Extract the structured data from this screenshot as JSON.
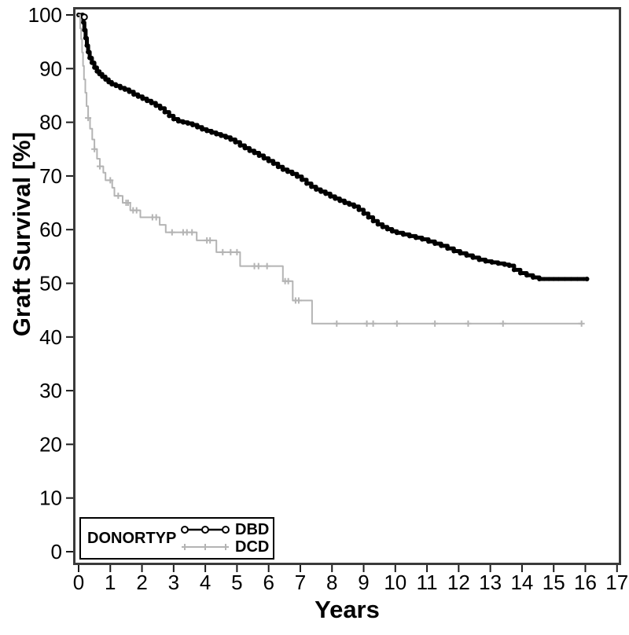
{
  "colors": {
    "dbd": "#000000",
    "dcd": "#b4b4b4",
    "frame": "#3a3a3a",
    "tick": "#1a1a1a",
    "text": "#000000",
    "background": "#ffffff"
  },
  "chart_data": {
    "type": "line",
    "subtype": "kaplan-meier-step",
    "title": "",
    "xlabel": "Years",
    "ylabel": "Graft Survival [%]",
    "xlim": [
      0,
      17
    ],
    "ylim": [
      0,
      100
    ],
    "x_ticks": [
      0,
      1,
      2,
      3,
      4,
      5,
      6,
      7,
      8,
      9,
      10,
      11,
      12,
      13,
      14,
      15,
      16,
      17
    ],
    "y_ticks": [
      0,
      10,
      20,
      30,
      40,
      50,
      60,
      70,
      80,
      90,
      100
    ],
    "grid": false,
    "step": "post",
    "legend": {
      "title": "DONORTYP",
      "position": "bottom-left",
      "entries": [
        {
          "label": "DBD",
          "color": "#000000",
          "marker": "circle"
        },
        {
          "label": "DCD",
          "color": "#b4b4b4",
          "marker": "plus"
        }
      ]
    },
    "series": [
      {
        "name": "DBD",
        "color": "#000000",
        "marker": "circle",
        "line_width": 5,
        "points": [
          [
            0,
            100
          ],
          [
            0.12,
            100
          ],
          [
            0.15,
            98.6
          ],
          [
            0.18,
            97.2
          ],
          [
            0.22,
            95.7
          ],
          [
            0.26,
            94.3
          ],
          [
            0.3,
            93.1
          ],
          [
            0.35,
            92.0
          ],
          [
            0.42,
            91.1
          ],
          [
            0.5,
            90.2
          ],
          [
            0.58,
            89.5
          ],
          [
            0.66,
            89.0
          ],
          [
            0.75,
            88.5
          ],
          [
            0.85,
            88.0
          ],
          [
            0.95,
            87.5
          ],
          [
            1.05,
            87.1
          ],
          [
            1.18,
            86.8
          ],
          [
            1.32,
            86.4
          ],
          [
            1.46,
            86.1
          ],
          [
            1.6,
            85.7
          ],
          [
            1.74,
            85.2
          ],
          [
            1.88,
            84.8
          ],
          [
            2.02,
            84.4
          ],
          [
            2.16,
            84.0
          ],
          [
            2.3,
            83.6
          ],
          [
            2.44,
            83.1
          ],
          [
            2.58,
            82.6
          ],
          [
            2.72,
            81.9
          ],
          [
            2.86,
            81.2
          ],
          [
            3.0,
            80.6
          ],
          [
            3.15,
            80.2
          ],
          [
            3.3,
            80.0
          ],
          [
            3.45,
            79.8
          ],
          [
            3.6,
            79.5
          ],
          [
            3.75,
            79.1
          ],
          [
            3.9,
            78.7
          ],
          [
            4.05,
            78.4
          ],
          [
            4.2,
            78.1
          ],
          [
            4.35,
            77.8
          ],
          [
            4.5,
            77.5
          ],
          [
            4.65,
            77.2
          ],
          [
            4.8,
            76.8
          ],
          [
            4.95,
            76.3
          ],
          [
            5.1,
            75.7
          ],
          [
            5.25,
            75.2
          ],
          [
            5.4,
            74.7
          ],
          [
            5.55,
            74.3
          ],
          [
            5.7,
            73.8
          ],
          [
            5.85,
            73.3
          ],
          [
            6.0,
            72.8
          ],
          [
            6.15,
            72.3
          ],
          [
            6.3,
            71.7
          ],
          [
            6.45,
            71.2
          ],
          [
            6.6,
            70.8
          ],
          [
            6.75,
            70.4
          ],
          [
            6.9,
            69.9
          ],
          [
            7.05,
            69.3
          ],
          [
            7.2,
            68.6
          ],
          [
            7.35,
            68.0
          ],
          [
            7.5,
            67.5
          ],
          [
            7.65,
            67.1
          ],
          [
            7.8,
            66.7
          ],
          [
            7.95,
            66.2
          ],
          [
            8.1,
            65.8
          ],
          [
            8.25,
            65.4
          ],
          [
            8.4,
            65.0
          ],
          [
            8.55,
            64.7
          ],
          [
            8.7,
            64.3
          ],
          [
            8.85,
            63.7
          ],
          [
            9.0,
            63.0
          ],
          [
            9.15,
            62.3
          ],
          [
            9.3,
            61.6
          ],
          [
            9.45,
            61.0
          ],
          [
            9.6,
            60.5
          ],
          [
            9.75,
            60.1
          ],
          [
            9.9,
            59.7
          ],
          [
            10.05,
            59.4
          ],
          [
            10.25,
            59.1
          ],
          [
            10.45,
            58.8
          ],
          [
            10.65,
            58.5
          ],
          [
            10.85,
            58.2
          ],
          [
            11.05,
            57.8
          ],
          [
            11.25,
            57.4
          ],
          [
            11.45,
            57.0
          ],
          [
            11.65,
            56.5
          ],
          [
            11.85,
            56.0
          ],
          [
            12.05,
            55.6
          ],
          [
            12.25,
            55.2
          ],
          [
            12.45,
            54.8
          ],
          [
            12.65,
            54.4
          ],
          [
            12.85,
            54.1
          ],
          [
            13.05,
            53.9
          ],
          [
            13.25,
            53.7
          ],
          [
            13.45,
            53.5
          ],
          [
            13.6,
            53.3
          ],
          [
            13.75,
            52.5
          ],
          [
            13.95,
            51.9
          ],
          [
            14.15,
            51.5
          ],
          [
            14.35,
            51.1
          ],
          [
            14.55,
            50.8
          ],
          [
            16.05,
            50.8
          ]
        ],
        "start_marker": [
          0.18,
          99.6
        ],
        "censor_marks": [
          [
            14.7,
            50.8
          ],
          [
            14.85,
            50.8
          ],
          [
            15.0,
            50.8
          ],
          [
            15.15,
            50.8
          ],
          [
            15.35,
            50.8
          ],
          [
            15.55,
            50.8
          ],
          [
            15.75,
            50.8
          ],
          [
            15.95,
            50.8
          ]
        ]
      },
      {
        "name": "DCD",
        "color": "#b4b4b4",
        "marker": "plus",
        "line_width": 2,
        "points": [
          [
            0,
            100
          ],
          [
            0.05,
            97.5
          ],
          [
            0.08,
            95.5
          ],
          [
            0.11,
            93.0
          ],
          [
            0.14,
            90.5
          ],
          [
            0.17,
            88.0
          ],
          [
            0.21,
            85.5
          ],
          [
            0.25,
            83.0
          ],
          [
            0.3,
            80.8
          ],
          [
            0.36,
            78.8
          ],
          [
            0.43,
            76.8
          ],
          [
            0.5,
            75.0
          ],
          [
            0.58,
            73.2
          ],
          [
            0.67,
            71.8
          ],
          [
            0.78,
            70.6
          ],
          [
            0.85,
            69.2
          ],
          [
            1.06,
            67.8
          ],
          [
            1.13,
            66.3
          ],
          [
            1.39,
            65.0
          ],
          [
            1.63,
            63.6
          ],
          [
            1.95,
            62.3
          ],
          [
            2.56,
            60.9
          ],
          [
            2.75,
            59.5
          ],
          [
            3.73,
            58.0
          ],
          [
            4.35,
            55.8
          ],
          [
            5.1,
            53.2
          ],
          [
            6.45,
            50.4
          ],
          [
            6.76,
            46.8
          ],
          [
            7.37,
            42.5
          ],
          [
            15.9,
            42.5
          ]
        ],
        "censor_marks": [
          [
            0.3,
            80.8
          ],
          [
            0.5,
            75.0
          ],
          [
            0.67,
            71.8
          ],
          [
            1.0,
            69.2
          ],
          [
            1.25,
            66.3
          ],
          [
            1.5,
            65.0
          ],
          [
            1.56,
            65.0
          ],
          [
            1.72,
            63.6
          ],
          [
            1.83,
            63.6
          ],
          [
            2.33,
            62.3
          ],
          [
            2.45,
            62.3
          ],
          [
            2.95,
            59.5
          ],
          [
            3.3,
            59.5
          ],
          [
            3.42,
            59.5
          ],
          [
            3.58,
            59.5
          ],
          [
            4.05,
            58.0
          ],
          [
            4.15,
            58.0
          ],
          [
            4.55,
            55.8
          ],
          [
            4.8,
            55.8
          ],
          [
            5.0,
            55.8
          ],
          [
            5.55,
            53.2
          ],
          [
            5.68,
            53.2
          ],
          [
            5.95,
            53.2
          ],
          [
            6.52,
            50.4
          ],
          [
            6.62,
            50.4
          ],
          [
            6.85,
            46.8
          ],
          [
            6.95,
            46.8
          ],
          [
            8.15,
            42.5
          ],
          [
            9.1,
            42.5
          ],
          [
            9.3,
            42.5
          ],
          [
            10.05,
            42.5
          ],
          [
            11.25,
            42.5
          ],
          [
            12.3,
            42.5
          ],
          [
            13.4,
            42.5
          ],
          [
            15.88,
            42.5
          ]
        ]
      }
    ]
  }
}
